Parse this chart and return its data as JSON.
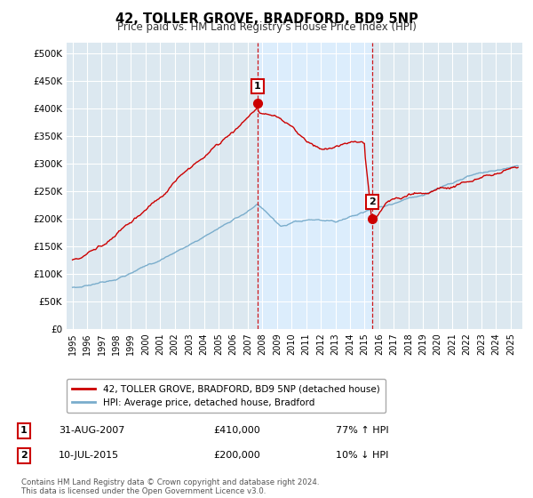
{
  "title": "42, TOLLER GROVE, BRADFORD, BD9 5NP",
  "subtitle": "Price paid vs. HM Land Registry's House Price Index (HPI)",
  "ylabel_ticks": [
    "£0",
    "£50K",
    "£100K",
    "£150K",
    "£200K",
    "£250K",
    "£300K",
    "£350K",
    "£400K",
    "£450K",
    "£500K"
  ],
  "ytick_values": [
    0,
    50000,
    100000,
    150000,
    200000,
    250000,
    300000,
    350000,
    400000,
    450000,
    500000
  ],
  "ylim": [
    0,
    520000
  ],
  "xlim_start": 1994.6,
  "xlim_end": 2025.8,
  "sale1_date": 2007.667,
  "sale1_price": 410000,
  "sale2_date": 2015.525,
  "sale2_price": 200000,
  "line_color_red": "#cc0000",
  "line_color_blue": "#7aadcc",
  "shade_color": "#ddeeff",
  "dashed_color": "#cc0000",
  "marker_color": "#cc0000",
  "legend_label_red": "42, TOLLER GROVE, BRADFORD, BD9 5NP (detached house)",
  "legend_label_blue": "HPI: Average price, detached house, Bradford",
  "table_row1": [
    "1",
    "31-AUG-2007",
    "£410,000",
    "77% ↑ HPI"
  ],
  "table_row2": [
    "2",
    "10-JUL-2015",
    "£200,000",
    "10% ↓ HPI"
  ],
  "footnote": "Contains HM Land Registry data © Crown copyright and database right 2024.\nThis data is licensed under the Open Government Licence v3.0.",
  "background_color": "#ffffff",
  "plot_bg_color": "#dce8f0",
  "grid_color": "#ffffff"
}
